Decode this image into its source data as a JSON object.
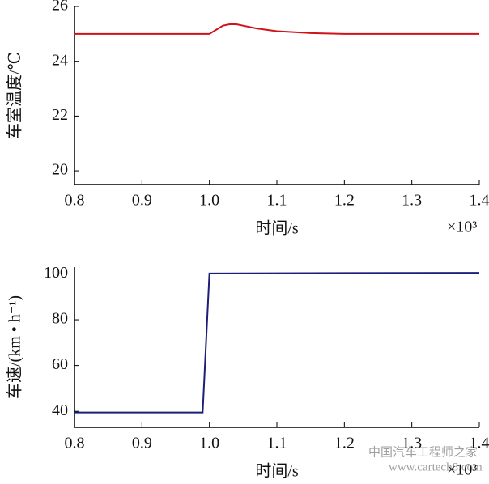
{
  "chart_data": [
    {
      "type": "line",
      "ylabel": "车室温度/℃",
      "xlabel": "时间/s",
      "x_multiplier": "×10³",
      "x": [
        0.8,
        1.0,
        1.01,
        1.02,
        1.03,
        1.04,
        1.05,
        1.07,
        1.1,
        1.15,
        1.2,
        1.3,
        1.4
      ],
      "series": [
        {
          "color": "#d0121b",
          "values": [
            25,
            25,
            25.15,
            25.3,
            25.35,
            25.35,
            25.3,
            25.2,
            25.1,
            25.03,
            25,
            25,
            25
          ]
        }
      ],
      "xlim": [
        0.8,
        1.4
      ],
      "xticks": [
        0.8,
        0.9,
        {
          "value": 1,
          "label": "1.0"
        },
        1.1,
        1.2,
        1.3,
        1.4
      ],
      "ylim": [
        19.5,
        26
      ],
      "yticks": [
        20,
        22,
        24,
        26
      ]
    },
    {
      "type": "line",
      "ylabel": "车速/(km • h⁻¹)",
      "xlabel": "时间/s",
      "x_multiplier": "×10³",
      "x": [
        0.8,
        0.99,
        1.0,
        1.2,
        1.4
      ],
      "series": [
        {
          "color": "#1b1f7a",
          "values": [
            39.5,
            39.5,
            100.2,
            100.4,
            100.5
          ]
        }
      ],
      "xlim": [
        0.8,
        1.4
      ],
      "xticks": [
        0.8,
        0.9,
        {
          "value": 1,
          "label": "1.0"
        },
        1.1,
        1.2,
        1.3,
        1.4
      ],
      "ylim": [
        33,
        103
      ],
      "yticks": [
        40,
        60,
        80,
        100
      ]
    }
  ],
  "watermark": [
    "中国汽车工程师之家",
    "www.cartech8.com"
  ]
}
